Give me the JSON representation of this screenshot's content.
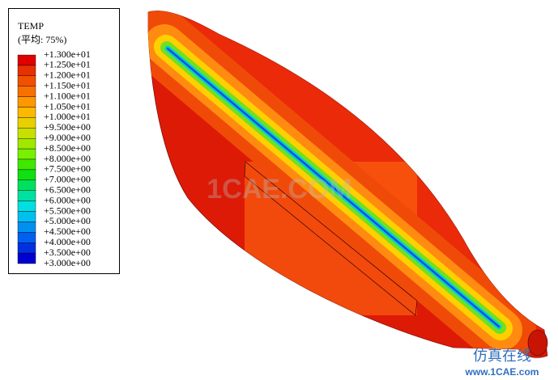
{
  "legend": {
    "title": "TEMP",
    "subtitle": "(平均: 75%)",
    "labels": [
      "+1.300e+01",
      "+1.250e+01",
      "+1.200e+01",
      "+1.150e+01",
      "+1.100e+01",
      "+1.050e+01",
      "+1.000e+01",
      "+9.500e+00",
      "+9.000e+00",
      "+8.500e+00",
      "+8.000e+00",
      "+7.500e+00",
      "+7.000e+00",
      "+6.500e+00",
      "+6.000e+00",
      "+5.500e+00",
      "+5.000e+00",
      "+4.500e+00",
      "+4.000e+00",
      "+3.500e+00",
      "+3.000e+00"
    ],
    "colors": [
      "#e00000",
      "#e83000",
      "#f05000",
      "#f87000",
      "#ff9800",
      "#ffb800",
      "#e8d000",
      "#c8e000",
      "#a0e800",
      "#78f000",
      "#40e800",
      "#10e010",
      "#00e060",
      "#00e0a0",
      "#00e0e0",
      "#00c0f0",
      "#0090f0",
      "#0060f0",
      "#0030e0",
      "#0000d0"
    ]
  },
  "watermark": {
    "center": "1CAE.COM",
    "brand": "仿真在线",
    "url": "www.1CAE.com"
  }
}
